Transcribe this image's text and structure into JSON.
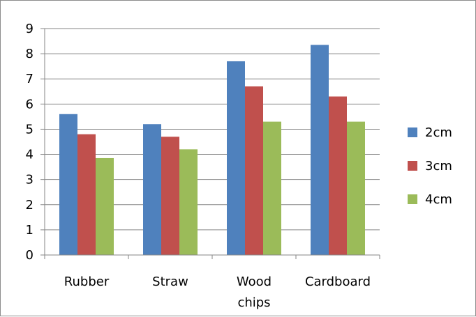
{
  "chart_data": {
    "type": "bar",
    "categories": [
      [
        "Rubber"
      ],
      [
        "Straw"
      ],
      [
        "Wood",
        "chips"
      ],
      [
        "Cardboard"
      ]
    ],
    "series": [
      {
        "name": "2cm",
        "color": "#4F81BD",
        "values": [
          5.6,
          5.2,
          7.7,
          8.35
        ]
      },
      {
        "name": "3cm",
        "color": "#C0504D",
        "values": [
          4.8,
          4.7,
          6.7,
          6.3
        ]
      },
      {
        "name": "4cm",
        "color": "#9BBB59",
        "values": [
          3.85,
          4.2,
          5.3,
          5.3
        ]
      }
    ],
    "ylim": [
      0,
      9
    ],
    "yticks": [
      "0",
      "1",
      "2",
      "3",
      "4",
      "5",
      "6",
      "7",
      "8",
      "9"
    ],
    "grid": true,
    "legend": "right",
    "title": "",
    "xlabel": "",
    "ylabel": ""
  }
}
